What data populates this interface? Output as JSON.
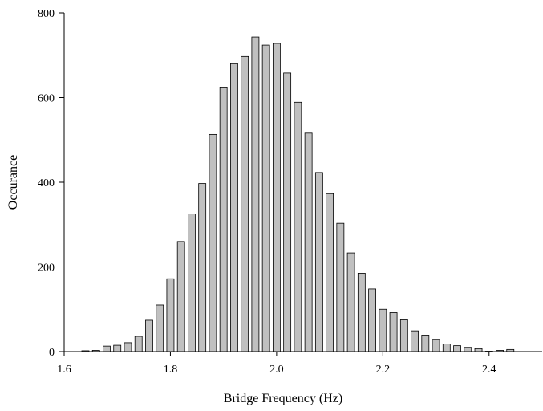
{
  "chart_data": {
    "type": "bar",
    "title": "",
    "xlabel": "Bridge Frequency (Hz)",
    "ylabel": "Occurance",
    "xlim": [
      1.6,
      2.5
    ],
    "ylim": [
      0,
      800
    ],
    "x_ticks": [
      "1.6",
      "1.8",
      "2.0",
      "2.2",
      "2.4"
    ],
    "y_ticks": [
      "0",
      "200",
      "400",
      "600",
      "800"
    ],
    "grid": false,
    "legend": "none",
    "bar_color": "#c0c0c0",
    "x": [
      1.64,
      1.66,
      1.68,
      1.7,
      1.72,
      1.74,
      1.76,
      1.78,
      1.8,
      1.82,
      1.84,
      1.86,
      1.88,
      1.9,
      1.92,
      1.94,
      1.96,
      1.98,
      2.0,
      2.02,
      2.04,
      2.06,
      2.08,
      2.1,
      2.12,
      2.14,
      2.16,
      2.18,
      2.2,
      2.22,
      2.24,
      2.26,
      2.28,
      2.3,
      2.32,
      2.34,
      2.36,
      2.38,
      2.4,
      2.42,
      2.44
    ],
    "values": [
      2,
      3,
      13,
      15,
      21,
      36,
      74,
      110,
      172,
      260,
      325,
      397,
      513,
      623,
      680,
      697,
      743,
      724,
      728,
      658,
      589,
      516,
      423,
      373,
      303,
      233,
      185,
      148,
      100,
      92,
      75,
      49,
      39,
      29,
      18,
      14,
      10,
      7,
      1,
      3,
      5
    ]
  }
}
